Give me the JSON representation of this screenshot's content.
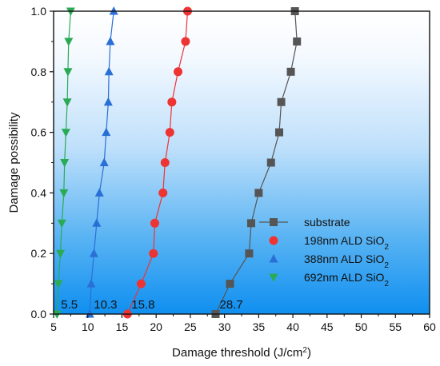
{
  "chart_data": {
    "type": "scatter",
    "xlabel": "Damage threshold (J/cm",
    "xlabel_sup": "2",
    "xlabel_suffix": ")",
    "ylabel": "Damage possibility",
    "xlim": [
      5,
      60
    ],
    "ylim": [
      0,
      1.0
    ],
    "x_ticks": [
      5,
      10,
      15,
      20,
      25,
      30,
      35,
      40,
      45,
      50,
      55,
      60
    ],
    "x_tick_labels": [
      "5",
      "10",
      "15",
      "20",
      "25",
      "30",
      "35",
      "40",
      "45",
      "50",
      "55",
      "60"
    ],
    "y_ticks": [
      0,
      0.2,
      0.4,
      0.6,
      0.8,
      1.0
    ],
    "y_tick_labels": [
      "0.0",
      "0.2",
      "0.4",
      "0.6",
      "0.8",
      "1.0"
    ],
    "grid": false,
    "background": "blue-gradient",
    "legend_position": "bottom-right",
    "series": [
      {
        "name": "substrate",
        "name_sub": "",
        "color": "#555555",
        "marker": "square",
        "points": [
          [
            28.7,
            0.0
          ],
          [
            30.8,
            0.1
          ],
          [
            33.6,
            0.2
          ],
          [
            33.9,
            0.3
          ],
          [
            35.0,
            0.4
          ],
          [
            36.8,
            0.5
          ],
          [
            38.0,
            0.6
          ],
          [
            38.3,
            0.7
          ],
          [
            39.7,
            0.8
          ],
          [
            40.6,
            0.9
          ],
          [
            40.3,
            1.0
          ]
        ]
      },
      {
        "name": "198nm ALD SiO",
        "name_sub": "2",
        "color": "#ee3333",
        "marker": "circle",
        "points": [
          [
            15.8,
            0.0
          ],
          [
            17.8,
            0.1
          ],
          [
            19.6,
            0.2
          ],
          [
            19.8,
            0.3
          ],
          [
            21.0,
            0.4
          ],
          [
            21.3,
            0.5
          ],
          [
            22.0,
            0.6
          ],
          [
            22.3,
            0.7
          ],
          [
            23.2,
            0.8
          ],
          [
            24.3,
            0.9
          ],
          [
            24.6,
            1.0
          ]
        ]
      },
      {
        "name": "388nm ALD SiO",
        "name_sub": "2",
        "color": "#2a6fd6",
        "marker": "triangle-up",
        "points": [
          [
            10.3,
            0.0
          ],
          [
            10.5,
            0.1
          ],
          [
            10.9,
            0.2
          ],
          [
            11.3,
            0.3
          ],
          [
            11.7,
            0.4
          ],
          [
            12.4,
            0.5
          ],
          [
            12.7,
            0.6
          ],
          [
            13.0,
            0.7
          ],
          [
            13.1,
            0.8
          ],
          [
            13.3,
            0.9
          ],
          [
            13.8,
            1.0
          ]
        ]
      },
      {
        "name": "692nm ALD SiO",
        "name_sub": "2",
        "color": "#2aaa55",
        "marker": "triangle-down",
        "points": [
          [
            5.5,
            0.0
          ],
          [
            5.7,
            0.1
          ],
          [
            6.0,
            0.2
          ],
          [
            6.2,
            0.3
          ],
          [
            6.5,
            0.4
          ],
          [
            6.6,
            0.5
          ],
          [
            6.8,
            0.6
          ],
          [
            7.0,
            0.7
          ],
          [
            7.1,
            0.8
          ],
          [
            7.2,
            0.9
          ],
          [
            7.5,
            1.0
          ]
        ]
      }
    ],
    "annotations": [
      {
        "text": "5.5",
        "x": 5.5
      },
      {
        "text": "10.3",
        "x": 10.3
      },
      {
        "text": "15.8",
        "x": 15.8
      },
      {
        "text": "28.7",
        "x": 28.7
      }
    ]
  }
}
